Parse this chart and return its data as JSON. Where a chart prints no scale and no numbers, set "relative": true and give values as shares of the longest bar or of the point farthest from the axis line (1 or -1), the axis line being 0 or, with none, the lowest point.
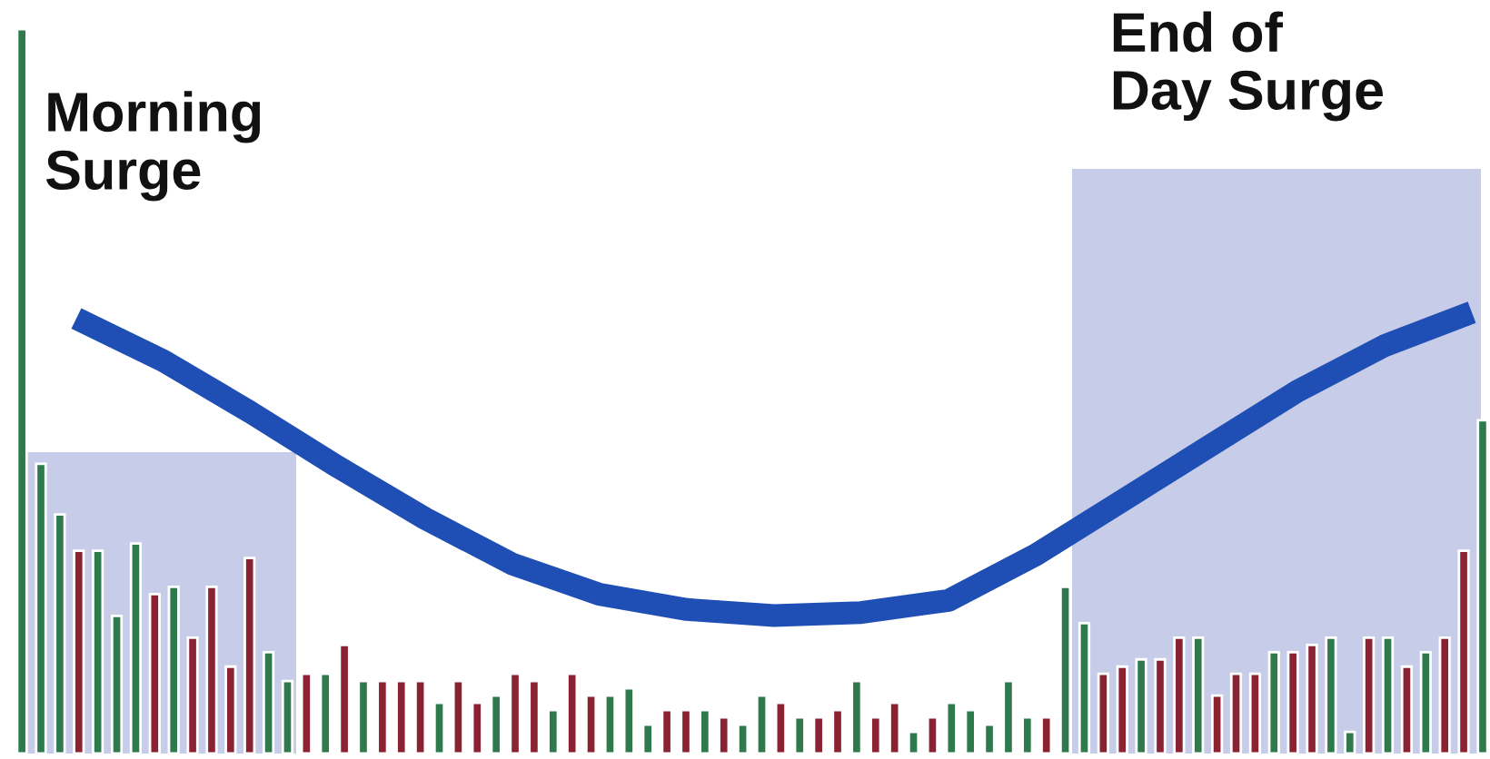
{
  "chart_data": [
    {
      "type": "bar",
      "relative": true,
      "legend": false,
      "categories": [
        null,
        null,
        null,
        null,
        null,
        null,
        null,
        null,
        null,
        null,
        null,
        null,
        null,
        null,
        null,
        null,
        null,
        null,
        null,
        null,
        null,
        null,
        null,
        null,
        null,
        null,
        null,
        null,
        null,
        null,
        null,
        null,
        null,
        null,
        null,
        null,
        null,
        null,
        null,
        null,
        null,
        null,
        null,
        null,
        null,
        null,
        null,
        null,
        null,
        null,
        null,
        null,
        null,
        null,
        null,
        null,
        null,
        null,
        null,
        null,
        null,
        null,
        null,
        null,
        null,
        null,
        null,
        null,
        null,
        null,
        null,
        null,
        null,
        null,
        null,
        null,
        null,
        null
      ],
      "values": [
        1.0,
        0.4,
        0.33,
        0.28,
        0.28,
        0.19,
        0.29,
        0.22,
        0.23,
        0.16,
        0.23,
        0.12,
        0.27,
        0.14,
        0.1,
        0.11,
        0.11,
        0.15,
        0.1,
        0.1,
        0.1,
        0.1,
        0.07,
        0.1,
        0.07,
        0.08,
        0.11,
        0.1,
        0.06,
        0.11,
        0.08,
        0.08,
        0.09,
        0.04,
        0.06,
        0.06,
        0.06,
        0.05,
        0.04,
        0.08,
        0.07,
        0.05,
        0.05,
        0.06,
        0.1,
        0.05,
        0.07,
        0.03,
        0.05,
        0.07,
        0.06,
        0.04,
        0.1,
        0.05,
        0.05,
        0.23,
        0.18,
        0.11,
        0.12,
        0.13,
        0.13,
        0.16,
        0.16,
        0.08,
        0.11,
        0.11,
        0.14,
        0.14,
        0.15,
        0.16,
        0.03,
        0.16,
        0.16,
        0.12,
        0.14,
        0.16,
        0.28,
        0.46
      ],
      "colors": [
        "#2e7a4c",
        "#2e7a4c",
        "#2e7a4c",
        "#8a2232",
        "#2e7a4c",
        "#2e7a4c",
        "#2e7a4c",
        "#8a2232",
        "#2e7a4c",
        "#8a2232",
        "#8a2232",
        "#8a2232",
        "#8a2232",
        "#2e7a4c",
        "#2e7a4c",
        "#8a2232",
        "#2e7a4c",
        "#8a2232",
        "#2e7a4c",
        "#8a2232",
        "#8a2232",
        "#8a2232",
        "#2e7a4c",
        "#8a2232",
        "#8a2232",
        "#2e7a4c",
        "#8a2232",
        "#8a2232",
        "#2e7a4c",
        "#8a2232",
        "#8a2232",
        "#2e7a4c",
        "#2e7a4c",
        "#2e7a4c",
        "#8a2232",
        "#8a2232",
        "#2e7a4c",
        "#8a2232",
        "#2e7a4c",
        "#2e7a4c",
        "#8a2232",
        "#2e7a4c",
        "#8a2232",
        "#8a2232",
        "#2e7a4c",
        "#8a2232",
        "#8a2232",
        "#2e7a4c",
        "#8a2232",
        "#2e7a4c",
        "#2e7a4c",
        "#2e7a4c",
        "#2e7a4c",
        "#2e7a4c",
        "#8a2232",
        "#2e7a4c",
        "#2e7a4c",
        "#8a2232",
        "#8a2232",
        "#2e7a4c",
        "#8a2232",
        "#8a2232",
        "#2e7a4c",
        "#8a2232",
        "#8a2232",
        "#8a2232",
        "#2e7a4c",
        "#8a2232",
        "#8a2232",
        "#2e7a4c",
        "#2e7a4c",
        "#8a2232",
        "#2e7a4c",
        "#8a2232",
        "#2e7a4c",
        "#8a2232",
        "#8a2232",
        "#2e7a4c"
      ],
      "annotations": [
        "Morning\nSurge",
        "End of\nDay Surge"
      ]
    },
    {
      "type": "line",
      "relative": true,
      "legend": false,
      "line_style": "solid",
      "categories": [
        null,
        null,
        null,
        null,
        null,
        null,
        null,
        null,
        null,
        null,
        null,
        null,
        null,
        null,
        null,
        null,
        null
      ],
      "series": [
        {
          "color": "#1f4fb5",
          "values": [
            0.98,
            0.84,
            0.67,
            0.49,
            0.32,
            0.17,
            0.07,
            0.02,
            0.0,
            0.01,
            0.05,
            0.2,
            0.38,
            0.56,
            0.74,
            0.89,
            1.0
          ]
        }
      ]
    }
  ]
}
